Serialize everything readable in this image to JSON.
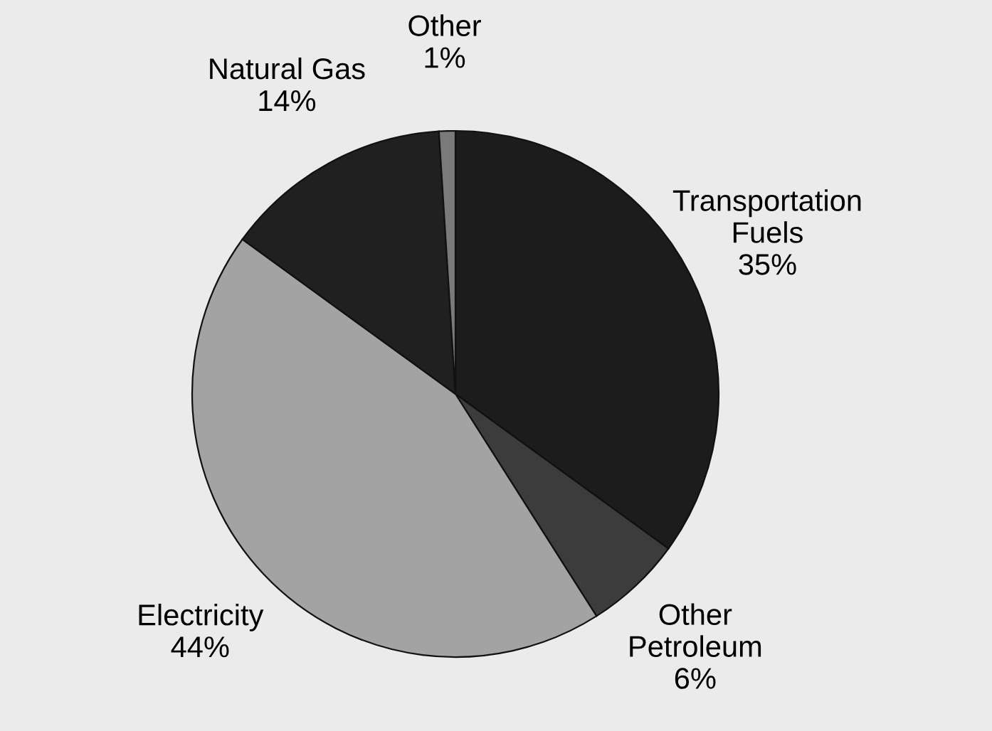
{
  "chart_data": {
    "type": "pie",
    "categories": [
      "Transportation\nFuels",
      "Other\nPetroleum",
      "Electricity",
      "Natural Gas",
      "Other"
    ],
    "values": [
      35,
      6,
      44,
      14,
      1
    ],
    "value_labels": [
      "35%",
      "6%",
      "44%",
      "14%",
      "1%"
    ],
    "colors": [
      "#1c1c1c",
      "#3c3c3c",
      "#a3a3a3",
      "#202020",
      "#7a7a7a"
    ],
    "legend": false
  }
}
